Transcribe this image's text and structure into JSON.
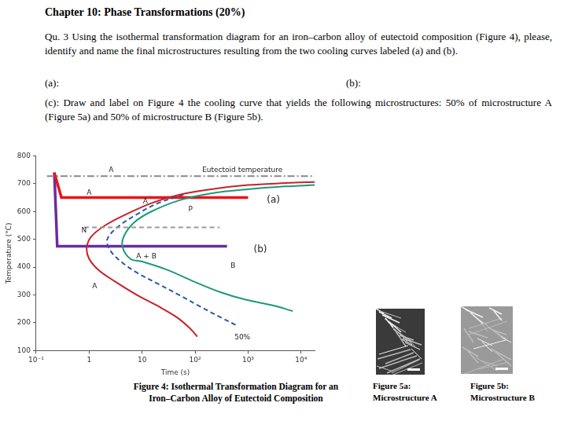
{
  "header": {
    "title": "Chapter 10: Phase Transformations (20%)"
  },
  "question": {
    "text": "Qu. 3 Using the isothermal transformation diagram for an iron–carbon alloy of eutectoid composition (Figure 4), please, identify and name the final microstructures resulting from the two cooling curves labeled (a) and (b).",
    "answers": [
      "(a):",
      "(b):"
    ],
    "part_c": "(c): Draw and label on Figure 4 the cooling curve that yields the following microstructures: 50% of microstructure A (Figure 5a) and 50% of microstructure B (Figure 5b)."
  },
  "chart_data": {
    "type": "line",
    "xlabel": "Time (s)",
    "ylabel": "Temperature (°C)",
    "log": "x",
    "grid": false,
    "xlim": [
      0.1,
      18000
    ],
    "xticks": [
      {
        "value": 0.1,
        "label": "10⁻¹"
      },
      1,
      10,
      {
        "value": 100,
        "label": "10²"
      },
      {
        "value": 1000,
        "label": "10³"
      },
      {
        "value": 10000,
        "label": "10⁴"
      }
    ],
    "ylim": [
      100,
      800
    ],
    "yticks": [
      100,
      200,
      300,
      400,
      500,
      600,
      700,
      800
    ],
    "series": [
      {
        "color": "#888888",
        "line_style": "dashdot",
        "x": [
          0.16,
          18000
        ],
        "values": [
          727,
          727
        ]
      },
      {
        "color": "#9a9a9a",
        "line_style": "dashed",
        "x": [
          0.8,
          290
        ],
        "values": [
          543,
          543
        ]
      },
      {
        "color": "#c8202a",
        "line_style": "solid",
        "x": [
          18000,
          5000,
          1000,
          200,
          50,
          15,
          5,
          2,
          1.1,
          0.9,
          1,
          1.5,
          3,
          8,
          20,
          45,
          80,
          110
        ],
        "values": [
          706,
          702,
          695,
          680,
          660,
          630,
          590,
          550,
          510,
          470,
          430,
          390,
          350,
          300,
          260,
          220,
          180,
          150
        ]
      },
      {
        "color": "#1a9a7a",
        "line_style": "solid",
        "x": [
          18000,
          5000,
          1000,
          200,
          50,
          15,
          7,
          4.5,
          4.3,
          6,
          10,
          30,
          90,
          300,
          900,
          3000,
          7000
        ],
        "values": [
          695,
          690,
          680,
          665,
          640,
          600,
          560,
          510,
          470,
          430,
          420,
          390,
          350,
          310,
          283,
          262,
          242
        ]
      },
      {
        "color": "#2a5aa8",
        "line_style": "dashed",
        "x": [
          60,
          20,
          8,
          3.5,
          2.2,
          2.5,
          4,
          8,
          20,
          50,
          120,
          300,
          630
        ],
        "values": [
          660,
          630,
          590,
          545,
          500,
          460,
          420,
          380,
          340,
          300,
          260,
          220,
          189
        ]
      },
      {
        "color": "#e8141c",
        "line_style": "bold",
        "x": [
          0.22,
          0.3,
          1000
        ],
        "values": [
          740,
          650,
          650
        ]
      },
      {
        "color": "#6a2ca0",
        "line_style": "bold",
        "x": [
          0.22,
          0.25,
          400
        ],
        "values": [
          740,
          475,
          475
        ]
      }
    ],
    "annotations": [
      {
        "text": "A",
        "x": 2.6,
        "y": 748
      },
      {
        "text": "Eutectoid temperature",
        "x": 780,
        "y": 748
      },
      {
        "text": "A",
        "x": 1.0,
        "y": 668
      },
      {
        "text": "A",
        "x": 11.5,
        "y": 636
      },
      {
        "text": "P",
        "x": 82,
        "y": 608
      },
      {
        "text": "N",
        "x": 0.8,
        "y": 532
      },
      {
        "text": "A + B",
        "x": 12,
        "y": 438
      },
      {
        "text": "B",
        "x": 520,
        "y": 403
      },
      {
        "text": "A",
        "x": 1.27,
        "y": 331
      },
      {
        "text": "50%",
        "x": 780,
        "y": 148
      },
      {
        "text": "(a)",
        "x": 3000,
        "y": 640
      },
      {
        "text": "(b)",
        "x": 1700,
        "y": 462
      }
    ]
  },
  "figure4_caption": [
    "Figure 4: Isothermal Transformation Diagram for an",
    "Iron–Carbon Alloy of Eutectoid Composition"
  ],
  "micrographs": [
    {
      "caption": [
        "Figure 5a:",
        "Microstructure A"
      ]
    },
    {
      "caption": [
        "Figure 5b:",
        "Microstructure B"
      ]
    }
  ]
}
